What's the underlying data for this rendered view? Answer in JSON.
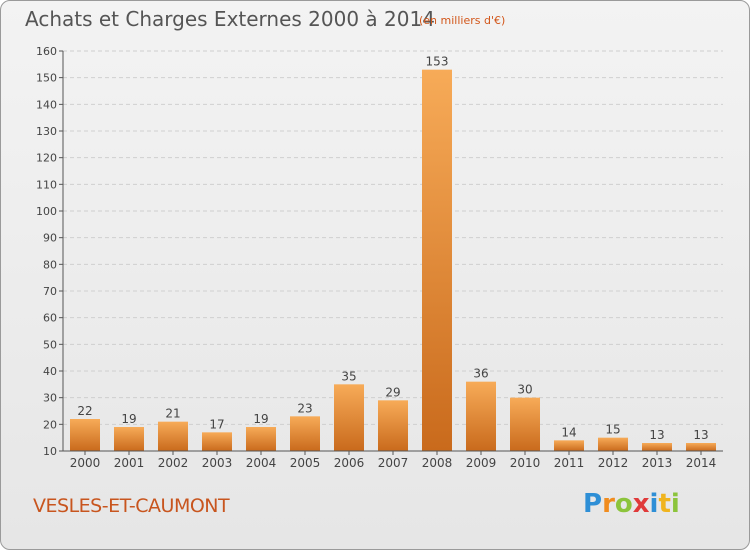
{
  "header": {
    "title": "Achats et Charges Externes 2000 à 2014",
    "unit": "(en milliers d'€)"
  },
  "footer": {
    "commune": "VESLES-ET-CAUMONT",
    "logo_letters": [
      "P",
      "r",
      "o",
      "x",
      "i",
      "t",
      "i"
    ],
    "logo_colors": [
      "#2e8fd6",
      "#f08c1e",
      "#8cc43c",
      "#e03a3a",
      "#2e8fd6",
      "#f0b41e",
      "#8cc43c"
    ]
  },
  "colors": {
    "bar_light": "#f7ab58",
    "bar_dark": "#c96a1c",
    "axis": "#555555",
    "grid": "#cfcfcf",
    "text": "#444444"
  },
  "chart_data": {
    "type": "bar",
    "categories": [
      "2000",
      "2001",
      "2002",
      "2003",
      "2004",
      "2005",
      "2006",
      "2007",
      "2008",
      "2009",
      "2010",
      "2011",
      "2012",
      "2013",
      "2014"
    ],
    "values": [
      22,
      19,
      21,
      17,
      19,
      23,
      35,
      29,
      153,
      36,
      30,
      14,
      15,
      13,
      13
    ],
    "title": "Achats et Charges Externes 2000 à 2014",
    "unit": "(en milliers d'€)",
    "ylim": [
      10,
      160
    ],
    "yticks": [
      10,
      20,
      30,
      40,
      50,
      60,
      70,
      80,
      90,
      100,
      110,
      120,
      130,
      140,
      150,
      160
    ],
    "grid": true
  }
}
